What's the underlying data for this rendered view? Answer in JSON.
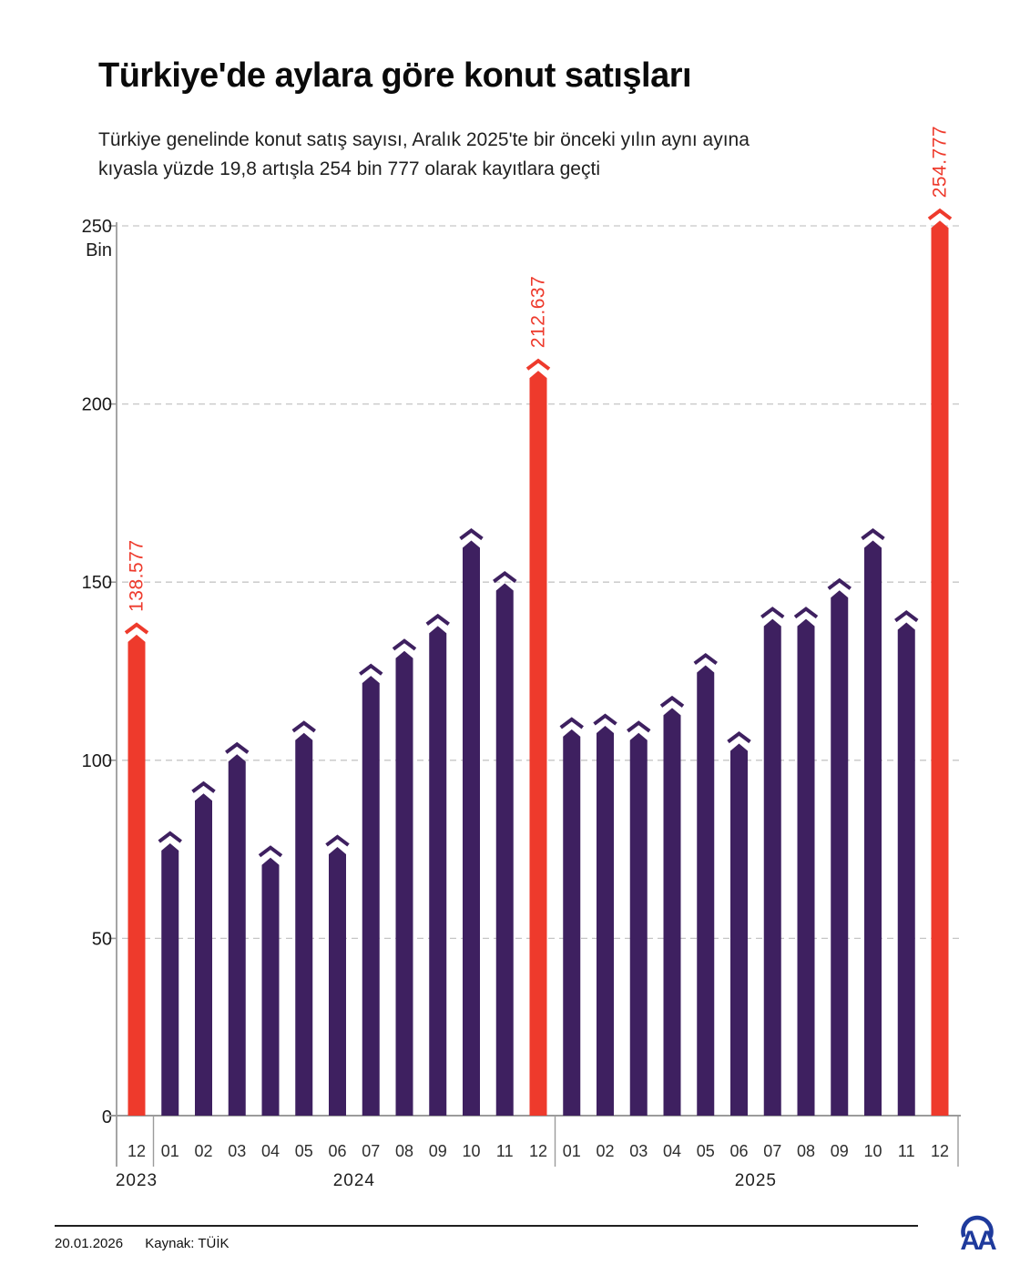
{
  "title": "Türkiye'de aylara göre konut satışları",
  "subtitle_lines": [
    "Türkiye genelinde konut satış sayısı, Aralık 2025'te bir önceki yılın aynı ayına",
    "kıyasla yüzde 19,8 artışla 254 bin 777 olarak kayıtlara geçti"
  ],
  "footer": {
    "date": "20.01.2026",
    "source": "Kaynak: TÜİK",
    "agency": "AA"
  },
  "chart_data": {
    "type": "bar",
    "title": "Türkiye'de aylara göre konut satışları",
    "unit_label": "Bin",
    "ylabel": "Bin",
    "ylim": [
      0,
      250
    ],
    "y_ticks": [
      0,
      50,
      100,
      150,
      200,
      250
    ],
    "grid": "dashed horizontal gridlines",
    "legend": "none",
    "bar_color": "#3e2060",
    "highlight_color": "#ee3a2c",
    "axis_color": "#9b9b9b",
    "grid_color": "#c6c6c6",
    "tick_label_color": "#1a1a1a",
    "note": "values in thousands (Bin); red bars carry exact printed labels",
    "groups": [
      {
        "year": "2023",
        "categories": [
          "12"
        ],
        "values": [
          138.577
        ],
        "highlight": [
          true
        ],
        "labels": [
          "138.577"
        ]
      },
      {
        "year": "2024",
        "categories": [
          "01",
          "02",
          "03",
          "04",
          "05",
          "06",
          "07",
          "08",
          "09",
          "10",
          "11",
          "12"
        ],
        "values": [
          80,
          94,
          105,
          76,
          111,
          79,
          127,
          134,
          141,
          165,
          153,
          212.637
        ],
        "highlight": [
          false,
          false,
          false,
          false,
          false,
          false,
          false,
          false,
          false,
          false,
          false,
          true
        ],
        "labels": [
          null,
          null,
          null,
          null,
          null,
          null,
          null,
          null,
          null,
          null,
          null,
          "212.637"
        ]
      },
      {
        "year": "2025",
        "categories": [
          "01",
          "02",
          "03",
          "04",
          "05",
          "06",
          "07",
          "08",
          "09",
          "10",
          "11",
          "12"
        ],
        "values": [
          112,
          113,
          111,
          118,
          130,
          108,
          143,
          143,
          151,
          165,
          142,
          254.777
        ],
        "highlight": [
          false,
          false,
          false,
          false,
          false,
          false,
          false,
          false,
          false,
          false,
          false,
          true
        ],
        "labels": [
          null,
          null,
          null,
          null,
          null,
          null,
          null,
          null,
          null,
          null,
          null,
          "254.777"
        ]
      }
    ]
  }
}
